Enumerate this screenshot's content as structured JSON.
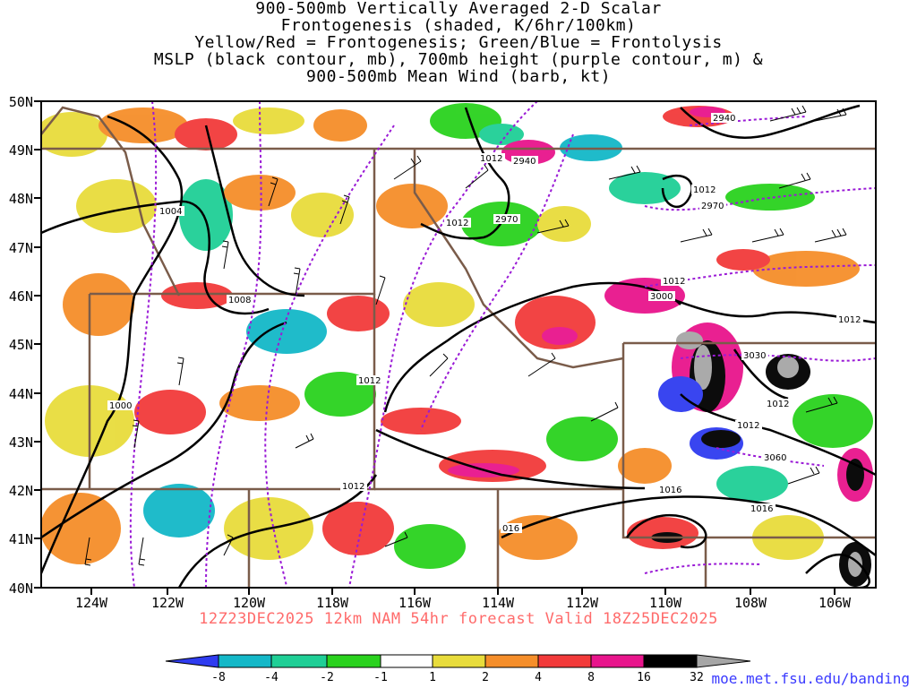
{
  "title": {
    "lines": [
      "900-500mb Vertically Averaged 2-D Scalar",
      "Frontogenesis (shaded, K/6hr/100km)",
      "Yellow/Red = Frontogenesis;  Green/Blue = Frontolysis",
      "MSLP (black contour, mb), 700mb height (purple contour, m) &",
      "900-500mb Mean Wind (barb, kt)"
    ]
  },
  "map": {
    "lat_labels": [
      "50N",
      "49N",
      "48N",
      "47N",
      "46N",
      "45N",
      "44N",
      "43N",
      "42N",
      "41N",
      "40N"
    ],
    "lon_labels": [
      "124W",
      "122W",
      "120W",
      "118W",
      "116W",
      "114W",
      "112W",
      "110W",
      "108W",
      "106W"
    ],
    "mslp_labels": [
      "1004",
      "1008",
      "1000",
      "1012",
      "1012",
      "1012",
      "1012",
      "1012",
      "1012",
      "1012",
      "1016",
      "016",
      "1016",
      "1012",
      "1012"
    ],
    "height_labels": [
      "2940",
      "2940",
      "2970",
      "2970",
      "3000",
      "3030",
      "3060"
    ],
    "colors": {
      "mslp": "#000000",
      "height": "#9a1ad6",
      "borders": "#7a5c4a"
    }
  },
  "forecast_line": "12Z23DEC2025 12km NAM 54hr forecast Valid 18Z25DEC2025",
  "colorbar": {
    "labels": [
      "-8",
      "-4",
      "-2",
      "-1",
      "1",
      "2",
      "4",
      "8",
      "16",
      "32"
    ],
    "colors": [
      "#2f3cf0",
      "#14b8c8",
      "#1fcf96",
      "#2ad21e",
      "#ffffff",
      "#e8dc3c",
      "#f58e2a",
      "#f23a3a",
      "#e8158c",
      "#000000",
      "#a6a6a6"
    ]
  },
  "credit": "moe.met.fsu.edu/banding"
}
